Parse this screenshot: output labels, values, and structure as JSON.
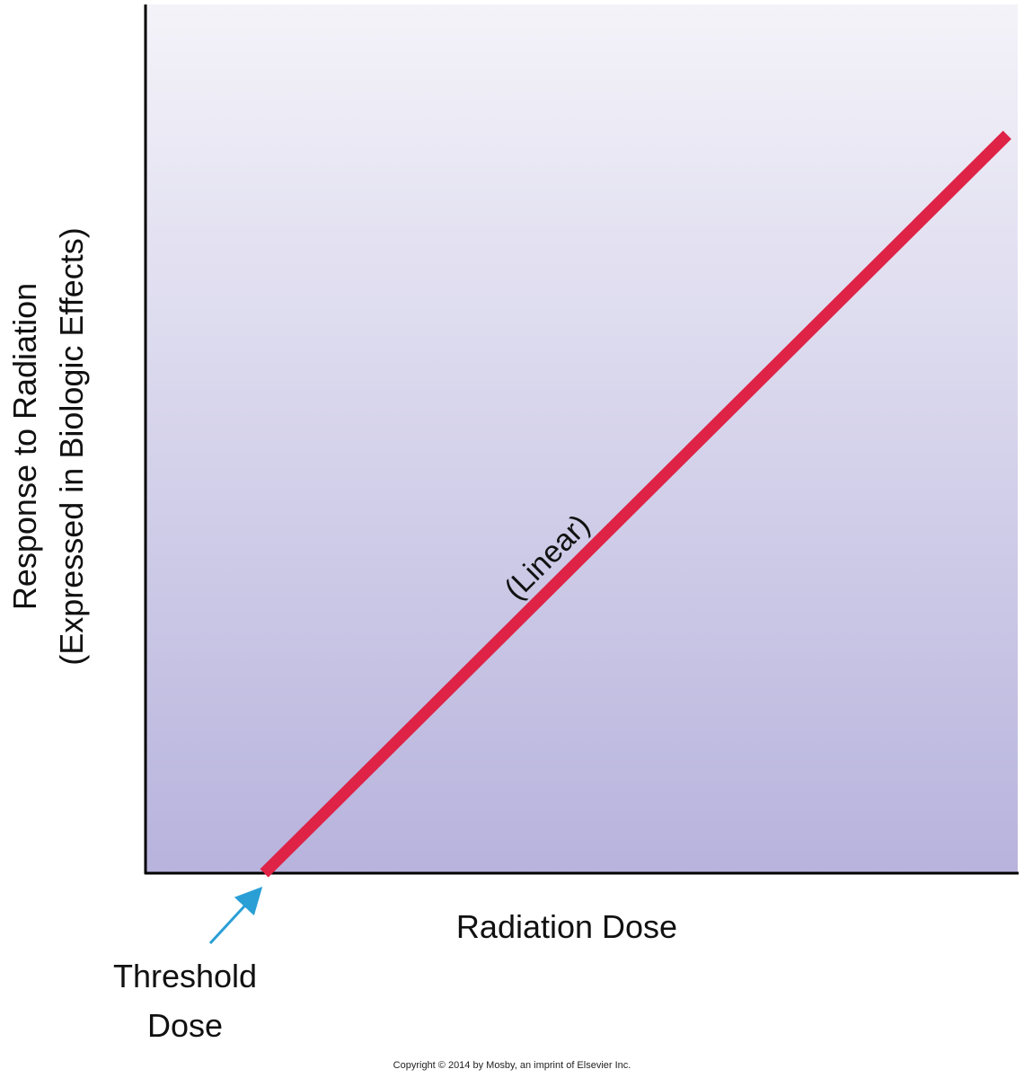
{
  "chart_data": {
    "type": "line",
    "title": "",
    "xlabel": "Radiation Dose",
    "ylabel_lines": [
      "Response to Radiation",
      "(Expressed in Biologic Effects)"
    ],
    "xlim": [
      0,
      100
    ],
    "ylim": [
      0,
      100
    ],
    "series": [
      {
        "points": [
          {
            "x": 13.6,
            "y": 0
          },
          {
            "x": 98.8,
            "y": 85
          }
        ],
        "color": "#de2346"
      }
    ],
    "annotations": {
      "line_label": "(Linear)",
      "threshold_lines": [
        "Threshold",
        "Dose"
      ]
    },
    "colors": {
      "line": "#de2346",
      "arrow": "#2a9fd6",
      "background_top": "#f4f3f9",
      "background_bottom": "#b7b3dd"
    },
    "grid": false,
    "legend": "none"
  },
  "footer": {
    "copyright": "Copyright © 2014 by Mosby, an imprint of Elsevier Inc."
  }
}
